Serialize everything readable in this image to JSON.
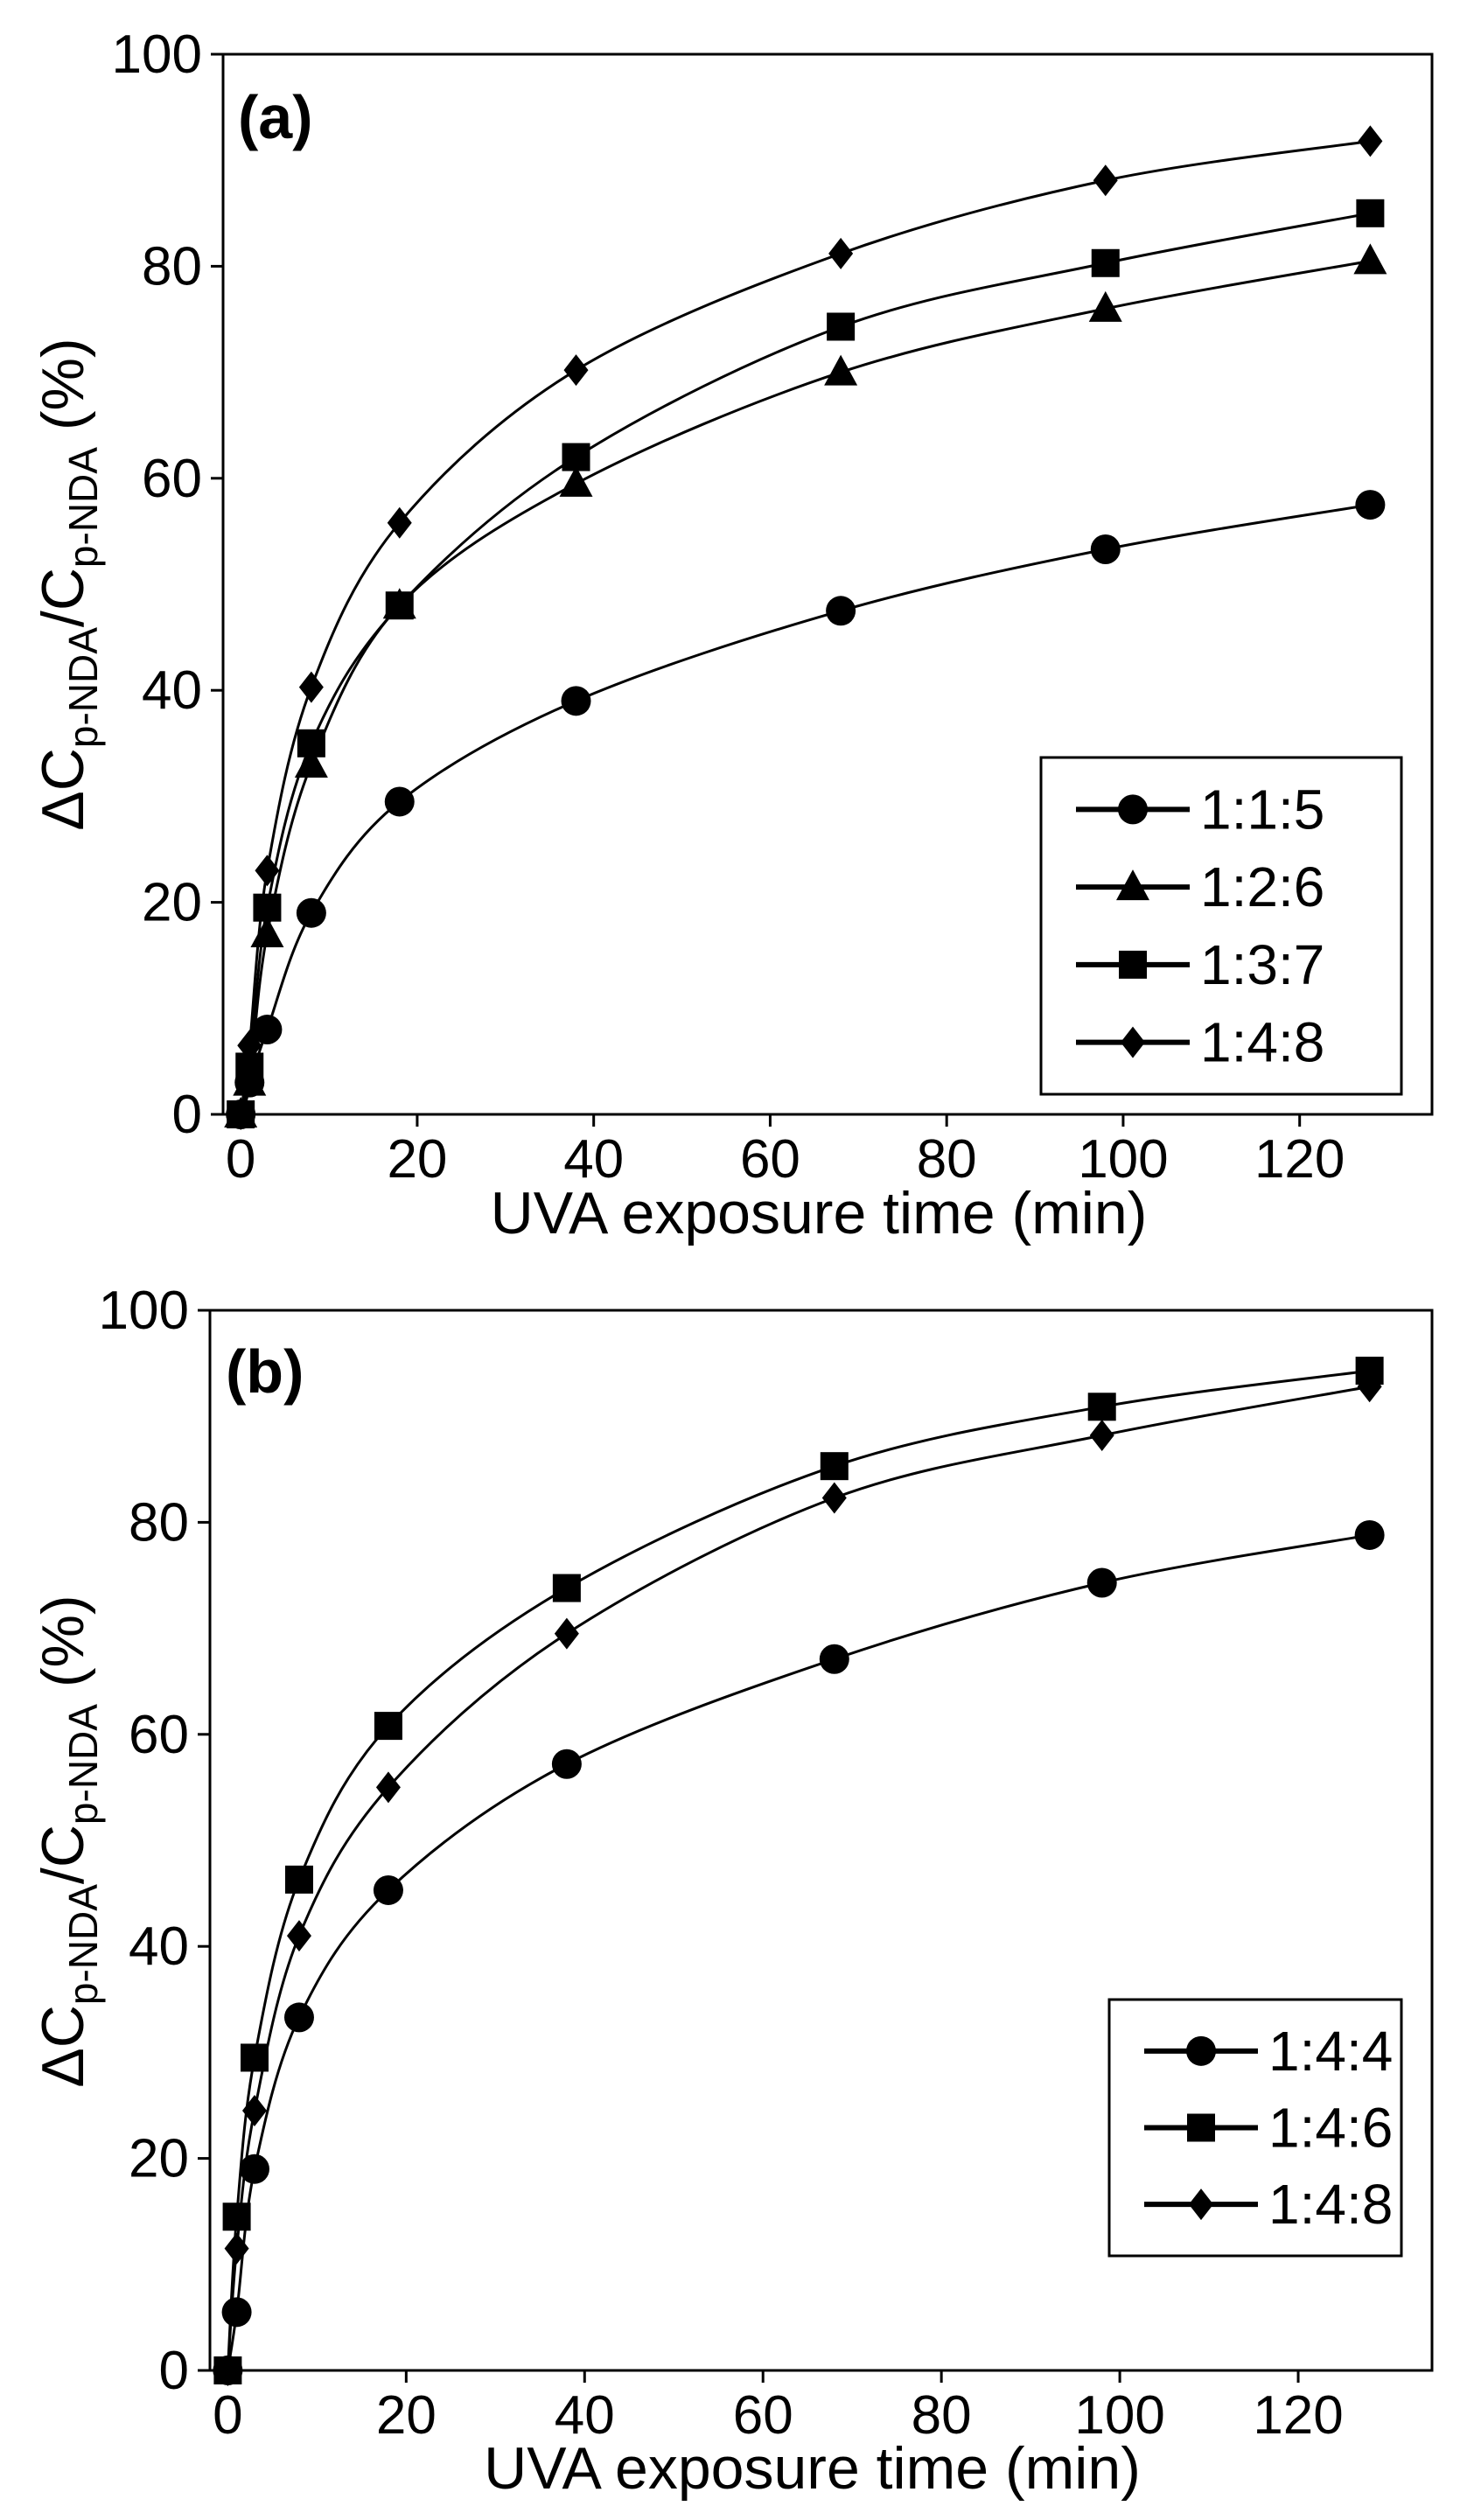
{
  "chart_data": [
    {
      "type": "line",
      "panel_label": "(a)",
      "xlabel": "UVA exposure time (min)",
      "ylabel": {
        "main": "ΔC",
        "sub1": "p-NDA",
        "slash": "/C",
        "sub2": "p-NDA",
        "unit": " (%)"
      },
      "xlim": [
        -2,
        135
      ],
      "ylim": [
        0,
        100
      ],
      "xticks": [
        0,
        20,
        40,
        60,
        80,
        100,
        120
      ],
      "yticks": [
        0,
        20,
        40,
        60,
        80,
        100
      ],
      "legend_position": "lower-right",
      "x": [
        0,
        1,
        3,
        8,
        18,
        38,
        68,
        98,
        128
      ],
      "series": [
        {
          "name": "1:1:5",
          "marker": "circle",
          "values": [
            0,
            3,
            8,
            19,
            29.5,
            39,
            47.5,
            53.3,
            57.5
          ]
        },
        {
          "name": "1:2:6",
          "marker": "triangle",
          "values": [
            0,
            3,
            17,
            33,
            48,
            59.5,
            70,
            76,
            80.5
          ]
        },
        {
          "name": "1:3:7",
          "marker": "square",
          "values": [
            0,
            4.5,
            19.5,
            35,
            48,
            62,
            74.3,
            80.3,
            85
          ]
        },
        {
          "name": "1:4:8",
          "marker": "diamond",
          "values": [
            0,
            6.5,
            23,
            40.3,
            55.8,
            70.2,
            81.2,
            88.1,
            91.8
          ]
        }
      ]
    },
    {
      "type": "line",
      "panel_label": "(b)",
      "xlabel": "UVA exposure time (min)",
      "ylabel": {
        "main": "ΔC",
        "sub1": "p-NDA",
        "slash": "/C",
        "sub2": "p-NDA",
        "unit": " (%)"
      },
      "xlim": [
        -2,
        135
      ],
      "ylim": [
        0,
        100
      ],
      "xticks": [
        0,
        20,
        40,
        60,
        80,
        100,
        120
      ],
      "yticks": [
        0,
        20,
        40,
        60,
        80,
        100
      ],
      "legend_position": "lower-right",
      "x": [
        0,
        1,
        3,
        8,
        18,
        38,
        68,
        98,
        128
      ],
      "series": [
        {
          "name": "1:4:4",
          "marker": "circle",
          "values": [
            0,
            5.5,
            19,
            33.3,
            45.3,
            57.2,
            67.1,
            74.3,
            78.8
          ]
        },
        {
          "name": "1:4:6",
          "marker": "square",
          "values": [
            0,
            14.5,
            29.5,
            46.3,
            60.8,
            73.8,
            85.3,
            90.9,
            94.3
          ]
        },
        {
          "name": "1:4:8",
          "marker": "diamond",
          "values": [
            0,
            11.5,
            24.5,
            41,
            55,
            69.5,
            82.3,
            88.2,
            92.8
          ]
        }
      ]
    }
  ]
}
